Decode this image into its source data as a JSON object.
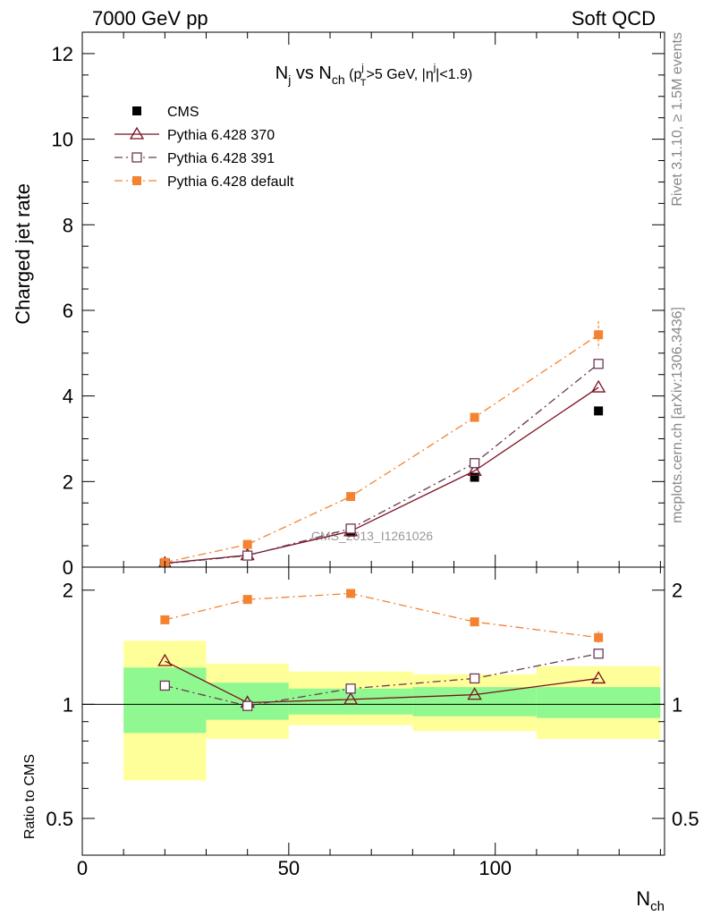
{
  "header": {
    "left": "7000 GeV pp",
    "right": "Soft QCD"
  },
  "side_labels": {
    "rivet": "Rivet 3.1.10, ≥ 1.5M events",
    "mcplots": "mcplots.cern.ch [arXiv:1306.3436]"
  },
  "watermark": "CMS_2013_I1261026",
  "chart_data": [
    {
      "type": "line",
      "panel": "main",
      "title_parts": {
        "n": "N",
        "n_sub": "j",
        "vs": " vs N",
        "ch_sub": "ch",
        "open": " (p",
        "pt_sup": "j",
        "pt_sub": "T",
        "mid": ">5 GeV, |η",
        "eta_sup": "j",
        "close": "|<1.9)"
      },
      "ylabel": "Charged jet rate",
      "xlim": [
        0,
        141
      ],
      "ylim": [
        0,
        12.5
      ],
      "yticks": [
        0,
        2,
        4,
        6,
        8,
        10,
        12
      ],
      "legend_position": "top-left",
      "series": [
        {
          "name": "CMS",
          "marker": "filled-square",
          "color": "#000000",
          "line": "none",
          "x": [
            20,
            40,
            65,
            95,
            125
          ],
          "y": [
            0.07,
            0.27,
            0.82,
            2.1,
            3.65
          ]
        },
        {
          "name": "Pythia 6.428 370",
          "marker": "open-triangle",
          "color": "#7b1020",
          "line": "solid",
          "x": [
            20,
            40,
            65,
            95,
            125
          ],
          "y": [
            0.09,
            0.28,
            0.84,
            2.25,
            4.2
          ]
        },
        {
          "name": "Pythia 6.428 391",
          "marker": "open-square",
          "color": "#6b3a55",
          "line": "dashdot",
          "x": [
            20,
            40,
            65,
            95,
            125
          ],
          "y": [
            0.08,
            0.27,
            0.9,
            2.43,
            4.75
          ]
        },
        {
          "name": "Pythia 6.428 default",
          "marker": "filled-square",
          "color": "#f58231",
          "line": "dashdot",
          "x": [
            20,
            40,
            65,
            95,
            125
          ],
          "y": [
            0.11,
            0.53,
            1.65,
            3.5,
            5.43
          ],
          "yerr": [
            0,
            0,
            0,
            0,
            0.32
          ]
        }
      ]
    },
    {
      "type": "line",
      "panel": "ratio",
      "ylabel": "Ratio to CMS",
      "xlabel": "N",
      "xlabel_sub": "ch",
      "xlim": [
        0,
        141
      ],
      "ylim": [
        0.4,
        2.3
      ],
      "log_y": true,
      "yticks": [
        0.5,
        1,
        2
      ],
      "ytick_labels": [
        "0.5",
        "1",
        "2"
      ],
      "xticks": [
        0,
        50,
        100
      ],
      "xtick_labels": [
        "0",
        "50",
        "100"
      ],
      "reference_line": 1,
      "uncertainty_bands": [
        {
          "x0": 10,
          "x1": 30,
          "inner": [
            0.84,
            1.25
          ],
          "outer": [
            0.63,
            1.47
          ]
        },
        {
          "x0": 30,
          "x1": 50,
          "inner": [
            0.91,
            1.14
          ],
          "outer": [
            0.81,
            1.28
          ]
        },
        {
          "x0": 50,
          "x1": 80,
          "inner": [
            0.94,
            1.1
          ],
          "outer": [
            0.88,
            1.22
          ]
        },
        {
          "x0": 80,
          "x1": 110,
          "inner": [
            0.93,
            1.11
          ],
          "outer": [
            0.85,
            1.2
          ]
        },
        {
          "x0": 110,
          "x1": 140,
          "inner": [
            0.92,
            1.11
          ],
          "outer": [
            0.81,
            1.26
          ]
        }
      ],
      "band_colors": {
        "inner": "#90f890",
        "outer": "#ffff99"
      },
      "series": [
        {
          "name": "Pythia 6.428 370",
          "marker": "open-triangle",
          "color": "#7b1020",
          "line": "solid",
          "x": [
            20,
            40,
            65,
            95,
            125
          ],
          "y": [
            1.3,
            1.01,
            1.03,
            1.06,
            1.17
          ]
        },
        {
          "name": "Pythia 6.428 391",
          "marker": "open-square",
          "color": "#6b3a55",
          "line": "dashdot",
          "x": [
            20,
            40,
            65,
            95,
            125
          ],
          "y": [
            1.12,
            0.99,
            1.1,
            1.17,
            1.36
          ]
        },
        {
          "name": "Pythia 6.428 default",
          "marker": "filled-square",
          "color": "#f58231",
          "line": "dashdot",
          "x": [
            20,
            40,
            65,
            95,
            125
          ],
          "y": [
            1.67,
            1.89,
            1.96,
            1.65,
            1.5
          ],
          "yerr": [
            0,
            0,
            0,
            0,
            0.06
          ]
        }
      ]
    }
  ]
}
